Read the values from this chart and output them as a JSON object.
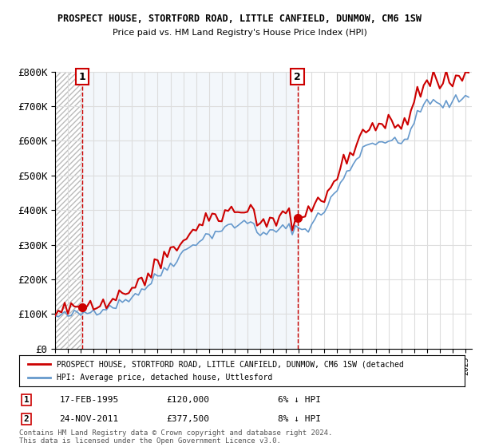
{
  "title": "PROSPECT HOUSE, STORTFORD ROAD, LITTLE CANFIELD, DUNMOW, CM6 1SW",
  "subtitle": "Price paid vs. HM Land Registry's House Price Index (HPI)",
  "legend_line1": "PROSPECT HOUSE, STORTFORD ROAD, LITTLE CANFIELD, DUNMOW, CM6 1SW (detached",
  "legend_line2": "HPI: Average price, detached house, Uttlesford",
  "annotation1_date": "17-FEB-1995",
  "annotation1_price": "£120,000",
  "annotation1_hpi": "6% ↓ HPI",
  "annotation2_date": "24-NOV-2011",
  "annotation2_price": "£377,500",
  "annotation2_hpi": "8% ↓ HPI",
  "footer": "Contains HM Land Registry data © Crown copyright and database right 2024.\nThis data is licensed under the Open Government Licence v3.0.",
  "sale1_year": 1995.12,
  "sale1_price": 120000,
  "sale2_year": 2011.9,
  "sale2_price": 377500,
  "ylim": [
    0,
    800000
  ],
  "xlim_start": 1993,
  "xlim_end": 2025.5,
  "grid_color": "#dddddd",
  "sale_color": "#cc0000",
  "hpi_color": "#6699cc",
  "background_right": "#e8f0f8"
}
